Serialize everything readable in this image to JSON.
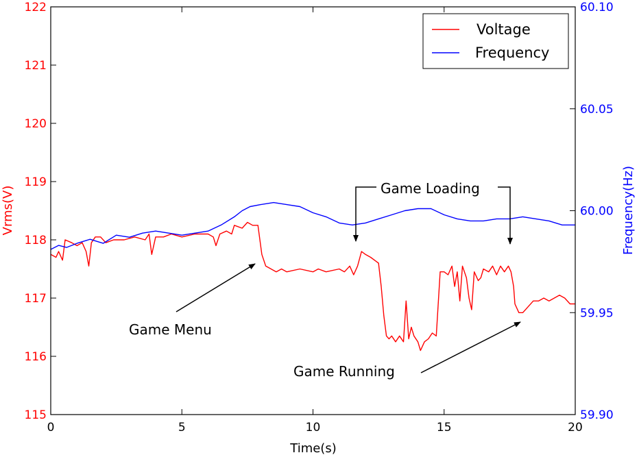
{
  "chart_data": {
    "type": "line",
    "xlabel": "Time(s)",
    "ylabel_left": "Vrms(V)",
    "ylabel_right": "Frequency(Hz)",
    "xlim": [
      0,
      20
    ],
    "ylim_left": [
      115,
      122
    ],
    "ylim_right": [
      59.9,
      60.1
    ],
    "x_ticks": [
      "0",
      "5",
      "10",
      "15",
      "20"
    ],
    "y_left_ticks": [
      "115",
      "116",
      "117",
      "118",
      "119",
      "120",
      "121",
      "122"
    ],
    "y_right_ticks": [
      "59.90",
      "59.95",
      "60.00",
      "60.05",
      "60.10"
    ],
    "grid": false,
    "legend_position": "top-right",
    "colors": {
      "voltage": "#ff0000",
      "frequency": "#0000ff"
    },
    "series": [
      {
        "name": "Voltage",
        "axis": "left",
        "points": [
          [
            0.0,
            117.75
          ],
          [
            0.2,
            117.7
          ],
          [
            0.3,
            117.8
          ],
          [
            0.45,
            117.65
          ],
          [
            0.55,
            118.0
          ],
          [
            0.8,
            117.95
          ],
          [
            1.0,
            117.9
          ],
          [
            1.2,
            117.95
          ],
          [
            1.35,
            117.8
          ],
          [
            1.45,
            117.55
          ],
          [
            1.55,
            117.95
          ],
          [
            1.7,
            118.05
          ],
          [
            1.9,
            118.05
          ],
          [
            2.1,
            117.95
          ],
          [
            2.4,
            118.0
          ],
          [
            2.8,
            118.0
          ],
          [
            3.2,
            118.05
          ],
          [
            3.6,
            118.0
          ],
          [
            3.75,
            118.1
          ],
          [
            3.85,
            117.75
          ],
          [
            4.0,
            118.05
          ],
          [
            4.3,
            118.05
          ],
          [
            4.6,
            118.1
          ],
          [
            5.0,
            118.05
          ],
          [
            5.5,
            118.1
          ],
          [
            6.0,
            118.1
          ],
          [
            6.2,
            118.05
          ],
          [
            6.3,
            117.9
          ],
          [
            6.45,
            118.1
          ],
          [
            6.7,
            118.15
          ],
          [
            6.9,
            118.1
          ],
          [
            7.0,
            118.25
          ],
          [
            7.3,
            118.2
          ],
          [
            7.5,
            118.3
          ],
          [
            7.7,
            118.25
          ],
          [
            7.9,
            118.25
          ],
          [
            8.05,
            117.75
          ],
          [
            8.2,
            117.55
          ],
          [
            8.4,
            117.5
          ],
          [
            8.6,
            117.45
          ],
          [
            8.8,
            117.5
          ],
          [
            9.0,
            117.45
          ],
          [
            9.5,
            117.5
          ],
          [
            10.0,
            117.45
          ],
          [
            10.2,
            117.5
          ],
          [
            10.5,
            117.45
          ],
          [
            11.0,
            117.5
          ],
          [
            11.2,
            117.45
          ],
          [
            11.4,
            117.55
          ],
          [
            11.55,
            117.4
          ],
          [
            11.7,
            117.55
          ],
          [
            11.85,
            117.8
          ],
          [
            12.0,
            117.75
          ],
          [
            12.2,
            117.7
          ],
          [
            12.5,
            117.6
          ],
          [
            12.6,
            117.2
          ],
          [
            12.7,
            116.7
          ],
          [
            12.8,
            116.35
          ],
          [
            12.9,
            116.3
          ],
          [
            13.0,
            116.35
          ],
          [
            13.15,
            116.25
          ],
          [
            13.3,
            116.35
          ],
          [
            13.45,
            116.25
          ],
          [
            13.55,
            116.95
          ],
          [
            13.65,
            116.3
          ],
          [
            13.75,
            116.5
          ],
          [
            13.85,
            116.35
          ],
          [
            14.0,
            116.25
          ],
          [
            14.1,
            116.1
          ],
          [
            14.25,
            116.25
          ],
          [
            14.4,
            116.3
          ],
          [
            14.55,
            116.4
          ],
          [
            14.7,
            116.35
          ],
          [
            14.85,
            117.45
          ],
          [
            15.0,
            117.45
          ],
          [
            15.15,
            117.4
          ],
          [
            15.3,
            117.55
          ],
          [
            15.4,
            117.2
          ],
          [
            15.5,
            117.45
          ],
          [
            15.6,
            116.95
          ],
          [
            15.7,
            117.55
          ],
          [
            15.85,
            117.35
          ],
          [
            15.95,
            117.0
          ],
          [
            16.05,
            116.8
          ],
          [
            16.15,
            117.45
          ],
          [
            16.3,
            117.3
          ],
          [
            16.4,
            117.35
          ],
          [
            16.5,
            117.5
          ],
          [
            16.7,
            117.45
          ],
          [
            16.85,
            117.55
          ],
          [
            17.0,
            117.4
          ],
          [
            17.15,
            117.55
          ],
          [
            17.3,
            117.45
          ],
          [
            17.45,
            117.55
          ],
          [
            17.55,
            117.45
          ],
          [
            17.65,
            117.2
          ],
          [
            17.7,
            116.9
          ],
          [
            17.85,
            116.75
          ],
          [
            18.0,
            116.75
          ],
          [
            18.2,
            116.85
          ],
          [
            18.4,
            116.95
          ],
          [
            18.6,
            116.95
          ],
          [
            18.8,
            117.0
          ],
          [
            19.0,
            116.95
          ],
          [
            19.2,
            117.0
          ],
          [
            19.4,
            117.05
          ],
          [
            19.6,
            117.0
          ],
          [
            19.8,
            116.9
          ],
          [
            20.0,
            116.9
          ]
        ]
      },
      {
        "name": "Frequency",
        "axis": "right",
        "points": [
          [
            0.0,
            59.981
          ],
          [
            0.3,
            59.983
          ],
          [
            0.6,
            59.982
          ],
          [
            1.0,
            59.984
          ],
          [
            1.5,
            59.986
          ],
          [
            2.0,
            59.984
          ],
          [
            2.5,
            59.988
          ],
          [
            3.0,
            59.987
          ],
          [
            3.5,
            59.989
          ],
          [
            4.0,
            59.99
          ],
          [
            4.5,
            59.989
          ],
          [
            5.0,
            59.988
          ],
          [
            5.5,
            59.989
          ],
          [
            6.0,
            59.99
          ],
          [
            6.5,
            59.993
          ],
          [
            7.0,
            59.997
          ],
          [
            7.3,
            60.0
          ],
          [
            7.6,
            60.002
          ],
          [
            8.0,
            60.003
          ],
          [
            8.5,
            60.004
          ],
          [
            9.0,
            60.003
          ],
          [
            9.5,
            60.002
          ],
          [
            10.0,
            59.999
          ],
          [
            10.5,
            59.997
          ],
          [
            11.0,
            59.994
          ],
          [
            11.5,
            59.993
          ],
          [
            12.0,
            59.994
          ],
          [
            12.5,
            59.996
          ],
          [
            13.0,
            59.998
          ],
          [
            13.5,
            60.0
          ],
          [
            14.0,
            60.001
          ],
          [
            14.5,
            60.001
          ],
          [
            15.0,
            59.998
          ],
          [
            15.5,
            59.996
          ],
          [
            16.0,
            59.995
          ],
          [
            16.5,
            59.995
          ],
          [
            17.0,
            59.996
          ],
          [
            17.5,
            59.996
          ],
          [
            18.0,
            59.997
          ],
          [
            18.5,
            59.996
          ],
          [
            19.0,
            59.995
          ],
          [
            19.5,
            59.993
          ],
          [
            20.0,
            59.993
          ]
        ]
      }
    ],
    "annotations": [
      {
        "text": "Game Menu",
        "arrow_to": [
          7.8,
          117.75
        ]
      },
      {
        "text": "Game Loading",
        "arrow_to": [
          [
            11.6,
            118.0
          ],
          [
            17.5,
            117.95
          ]
        ]
      },
      {
        "text": "Game Running",
        "arrow_to": [
          18.0,
          116.6
        ]
      }
    ]
  }
}
